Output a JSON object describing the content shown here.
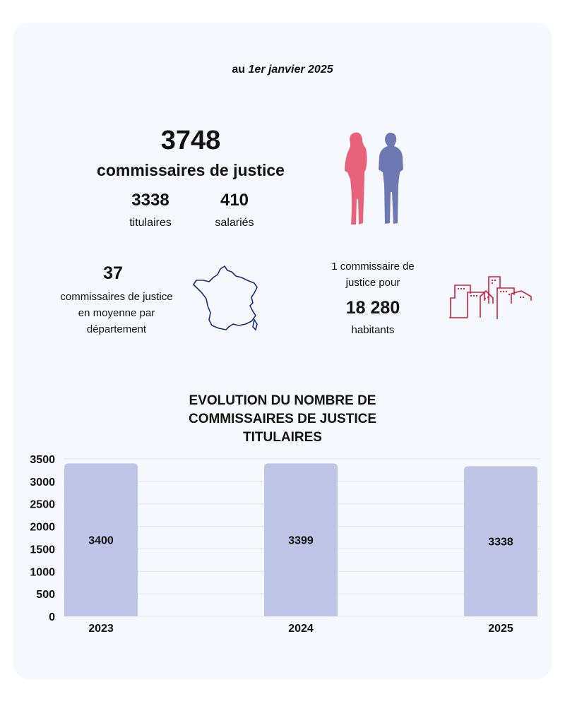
{
  "header": {
    "prefix": "au ",
    "date": "1er janvier 2025"
  },
  "total": {
    "value": "3748",
    "label": "commissaires de justice"
  },
  "breakdown": [
    {
      "value": "3338",
      "label": "titulaires"
    },
    {
      "value": "410",
      "label": "salariés"
    }
  ],
  "department": {
    "value": "37",
    "line1": "commissaires de justice",
    "line2": "en moyenne par",
    "line3": "département"
  },
  "ratio": {
    "line1": "1 commissaire de",
    "line2": "justice pour",
    "value": "18 280",
    "label": "habitants"
  },
  "colors": {
    "woman": "#e8627c",
    "man": "#6e78b3",
    "map_stroke": "#1f2d7a",
    "city": "#d61f3c",
    "bar": "#bec5e6",
    "card": "#f5f8fd"
  },
  "icons": [
    "woman-silhouette-icon",
    "man-silhouette-icon",
    "france-map-icon",
    "city-buildings-icon"
  ],
  "chart_data": {
    "type": "bar",
    "title_lines": [
      "EVOLUTION DU NOMBRE DE",
      "COMMISSAIRES DE JUSTICE",
      "TITULAIRES"
    ],
    "categories": [
      "2023",
      "2024",
      "2025"
    ],
    "values": [
      3400,
      3399,
      3338
    ],
    "ylim": [
      0,
      3500
    ],
    "yticks": [
      0,
      500,
      1000,
      1500,
      2000,
      2500,
      3000,
      3500
    ],
    "grid": true,
    "legend": "none"
  }
}
